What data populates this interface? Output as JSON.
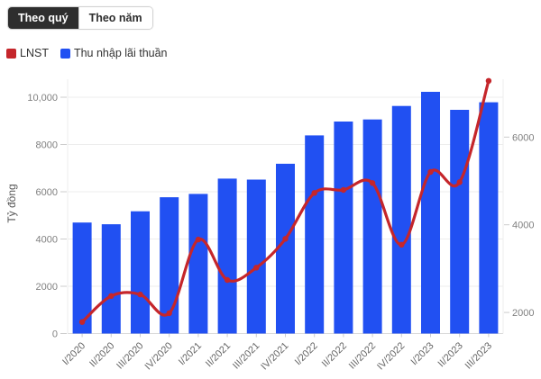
{
  "toolbar": {
    "tabs": [
      {
        "label": "Theo quý",
        "active": true
      },
      {
        "label": "Theo năm",
        "active": false
      }
    ]
  },
  "legend": {
    "items": [
      {
        "label": "LNST",
        "color": "#c5262b"
      },
      {
        "label": "Thu nhập lãi thuần",
        "color": "#2150f2"
      }
    ]
  },
  "chart_data": {
    "type": "combo",
    "categories": [
      "I/2020",
      "II/2020",
      "III/2020",
      "IV/2020",
      "I/2021",
      "II/2021",
      "III/2021",
      "IV/2021",
      "I/2022",
      "II/2022",
      "III/2022",
      "IV/2022",
      "I/2023",
      "II/2023",
      "III/2023"
    ],
    "series": [
      {
        "name": "Thu nhập lãi thuần",
        "type": "bar",
        "yaxis": "left",
        "color": "#2150f2",
        "values": [
          4695,
          4625,
          5174,
          5767,
          5909,
          6556,
          6515,
          7182,
          8385,
          8969,
          9057,
          9629,
          10227,
          9465,
          9784
        ]
      },
      {
        "name": "LNST",
        "type": "line",
        "yaxis": "right",
        "color": "#c5262b",
        "values": [
          1783,
          2376,
          2411,
          1983,
          3664,
          2742,
          3022,
          3680,
          4726,
          4794,
          4952,
          3546,
          5205,
          4972,
          7284
        ]
      }
    ],
    "left_axis": {
      "title": "Tỷ đồng",
      "ticks": [
        0,
        2000,
        4000,
        6000,
        8000,
        10000
      ],
      "labels": [
        "0",
        "2000",
        "4000",
        "6000",
        "8000",
        "10,000"
      ],
      "range": [
        0,
        10760
      ]
    },
    "right_axis": {
      "ticks": [
        2000,
        4000,
        6000
      ],
      "labels": [
        "2000",
        "4000",
        "6000"
      ],
      "range": [
        1520,
        7320
      ]
    },
    "grid": true,
    "legend_position": "top-left",
    "colors": {
      "gridline": "#ededed",
      "baseline": "#d9d9d9",
      "tick": "#cccccc",
      "axis_text": "#808080",
      "xlabel_text": "#666666",
      "axis_title_text": "#555555"
    }
  }
}
